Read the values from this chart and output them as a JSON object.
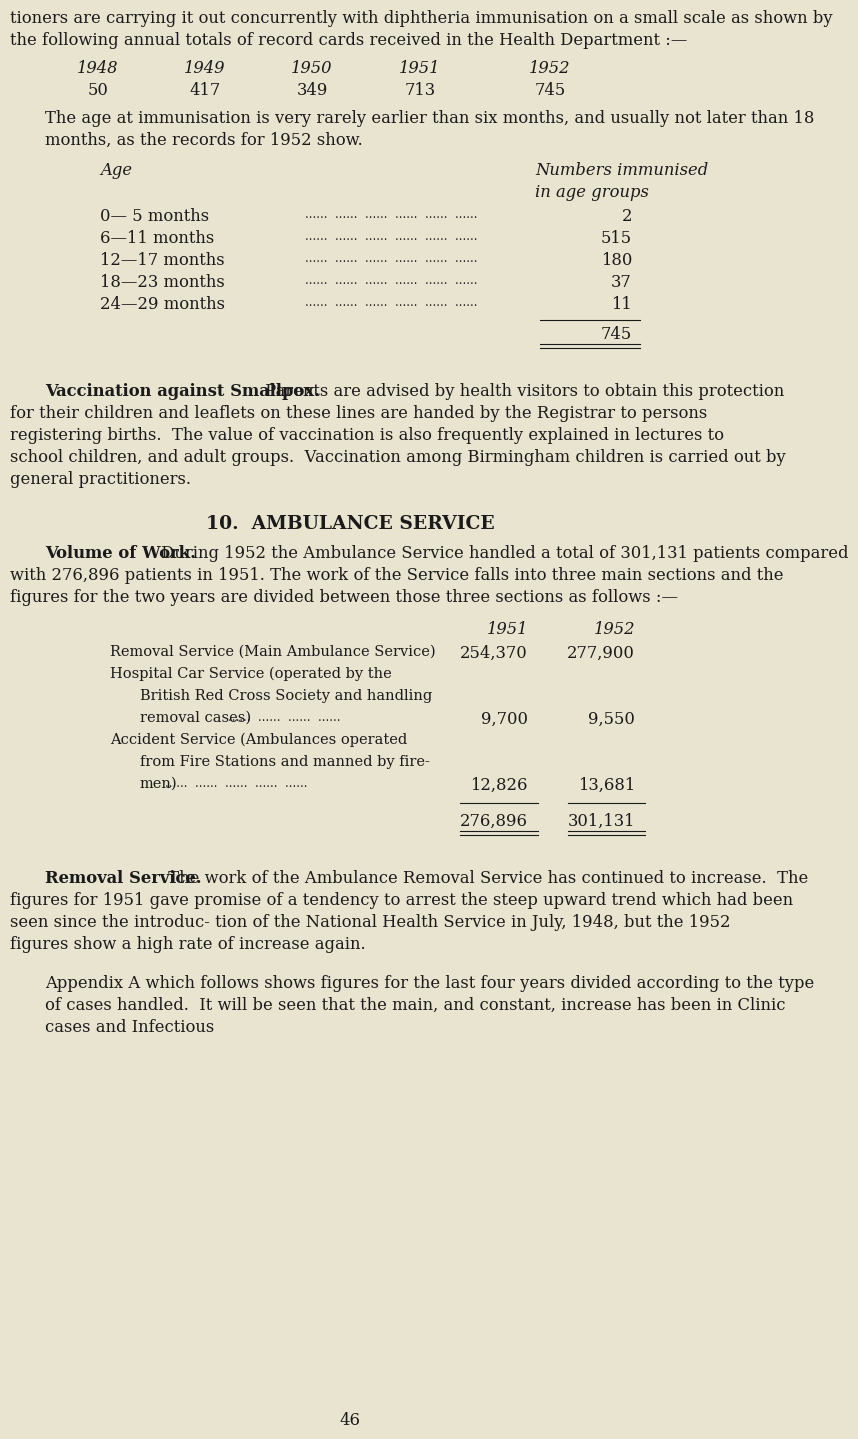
{
  "bg_color": "#e8e4d0",
  "text_color": "#1a1a1a",
  "page_number": "46",
  "para1": "tioners are carrying it out concurrently with diphtheria immunisation on a small scale as shown by the following annual totals of record cards received in the Health Department :—",
  "table1_years": [
    "1948",
    "1949",
    "1950",
    "1951",
    "1952"
  ],
  "table1_values": [
    "50",
    "417",
    "349",
    "713",
    "745"
  ],
  "para2": "The age at immunisation is very rarely earlier than six months, and usually not later than 18 months, as the records for 1952 show.",
  "age_col_header": "Age",
  "num_col_header1": "Numbers immunised",
  "num_col_header2": "in age groups",
  "age_rows": [
    "0— 5 months",
    "6—11 months",
    "12—17 months",
    "18—23 months",
    "24—29 months"
  ],
  "age_values": [
    "2",
    "515",
    "180",
    "37",
    "11"
  ],
  "age_total": "745",
  "para3_bold": "Vaccination against Smallpox.",
  "para3_rest": " Parents are advised by health visitors to obtain this protection for their children and leaflets on these lines are handed by the Registrar to persons registering births.  The value of vaccination is also frequently explained in lectures to school children, and adult groups.  Vaccination among Birmingham children is carried out by general practitioners.",
  "section_heading": "10.  AMBULANCE SERVICE",
  "para4_bold": "Volume of Work.",
  "para4_rest": " During 1952 the Ambulance Service handled a total of 301,131 patients compared with 276,896 patients in 1951. The work of the Service falls into three main sections and the figures for the two years are divided between those three sections as follows :—",
  "amb_row1_desc": "Removal Service (Main Ambulance Service)",
  "amb_row1_v1": "254,370",
  "amb_row1_v2": "277,900",
  "amb_row2_desc1": "Hospital Car Service (operated by the",
  "amb_row2_desc2": "British Red Cross Society and handling",
  "amb_row2_desc3": "removal cases)",
  "amb_row2_dots": "......  ......  ......  ......",
  "amb_row2_v1": "9,700",
  "amb_row2_v2": "9,550",
  "amb_row3_desc1": "Accident Service (Ambulances operated",
  "amb_row3_desc2": "from Fire Stations and manned by fire-",
  "amb_row3_desc3": "men)",
  "amb_row3_dots": "......  ......  ......  ......  ......",
  "amb_row3_v1": "12,826",
  "amb_row3_v2": "13,681",
  "amb_total_v1": "276,896",
  "amb_total_v2": "301,131",
  "para5_bold": "Removal Service.",
  "para5_rest": " The work of the Ambulance Removal Service has continued to increase.  The figures for 1951 gave promise of a tendency to arrest the steep upward trend which had been seen since the introduc- tion of the National Health Service in July, 1948, but the 1952 figures show a high rate of increase again.",
  "para6": "Appendix A which follows shows figures for the last four years divided according to the type of cases handled.  It will be seen that the main, and constant, increase has been in Clinic cases and Infectious"
}
